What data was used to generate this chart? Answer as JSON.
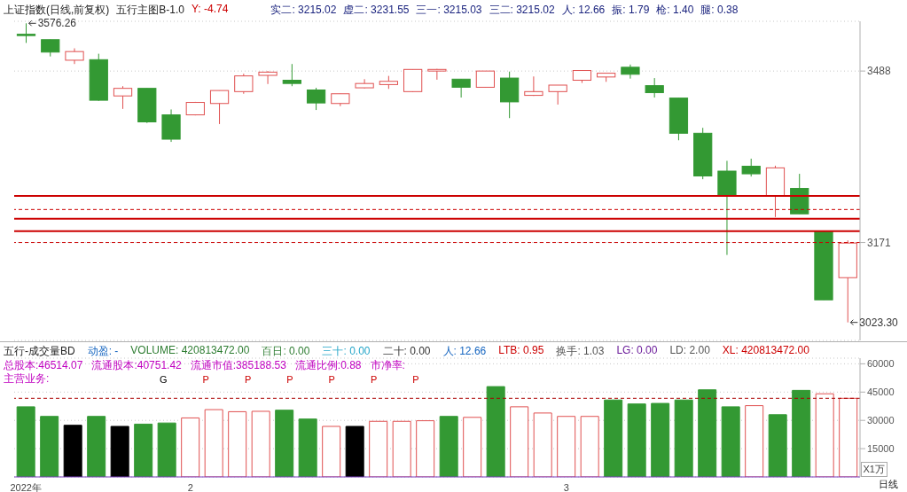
{
  "chart_data": [
    {
      "type": "candlestick",
      "title": "上证指数(日线,前复权)",
      "subtitle": "五行主图B-1.0",
      "annotations": [
        "Y: -4.74",
        "实二: 3215.02",
        "虚二: 3231.55",
        "三一: 3215.03",
        "三二: 3215.02",
        "人: 12.66",
        "振: 1.79",
        "枪: 1.40",
        "腿: 0.38",
        "3576.26",
        "3023.30"
      ],
      "categories": [
        null,
        null,
        null,
        null,
        null,
        null,
        null,
        null,
        null,
        null,
        null,
        null,
        null,
        null,
        null,
        null,
        null,
        null,
        null,
        null,
        null,
        null,
        null,
        null,
        null,
        null,
        null,
        null,
        null,
        null,
        null,
        null,
        null,
        null,
        null
      ],
      "ohlc": [
        [
          3556,
          3576.26,
          3540,
          3555
        ],
        [
          3546,
          3546,
          3515,
          3523
        ],
        [
          3508,
          3530,
          3501,
          3524
        ],
        [
          3509,
          3520,
          3433,
          3434
        ],
        [
          3442,
          3460,
          3418,
          3456
        ],
        [
          3456,
          3456,
          3392,
          3394
        ],
        [
          3407,
          3417,
          3357,
          3362
        ],
        [
          3407,
          3431,
          3406,
          3430
        ],
        [
          3428,
          3452,
          3390,
          3452
        ],
        [
          3450,
          3483,
          3446,
          3479
        ],
        [
          3480,
          3488,
          3464,
          3486
        ],
        [
          3471,
          3501,
          3460,
          3465
        ],
        [
          3453,
          3457,
          3416,
          3429
        ],
        [
          3428,
          3446,
          3423,
          3446
        ],
        [
          3457,
          3473,
          3456,
          3465
        ],
        [
          3463,
          3479,
          3455,
          3469
        ],
        [
          3450,
          3491,
          3449,
          3491
        ],
        [
          3488,
          3492,
          3472,
          3491
        ],
        [
          3473,
          3473,
          3439,
          3458
        ],
        [
          3458,
          3488,
          3458,
          3488
        ],
        [
          3475,
          3487,
          3401,
          3431
        ],
        [
          3443,
          3478,
          3442,
          3450
        ],
        [
          3450,
          3462,
          3426,
          3462
        ],
        [
          3471,
          3489,
          3466,
          3489
        ],
        [
          3477,
          3484,
          3468,
          3484
        ],
        [
          3495,
          3500,
          3474,
          3482
        ],
        [
          3461,
          3475,
          3439,
          3448
        ],
        [
          3438,
          3438,
          3360,
          3373
        ],
        [
          3373,
          3383,
          3288,
          3294
        ],
        [
          3303,
          3322,
          3148,
          3257
        ],
        [
          3312,
          3326,
          3293,
          3298
        ],
        [
          3257,
          3313,
          3218,
          3309
        ],
        [
          3271,
          3298,
          3224,
          3224
        ],
        [
          3191,
          3191,
          3065,
          3065
        ],
        [
          3106,
          3175,
          3023.3,
          3170
        ]
      ],
      "colors": [
        "#339933",
        "#339933",
        "#e05050",
        "#339933",
        "#e05050",
        "#339933",
        "#339933",
        "#e05050",
        "#e05050",
        "#e05050",
        "#e05050",
        "#339933",
        "#339933",
        "#e05050",
        "#e05050",
        "#e05050",
        "#e05050",
        "#e05050",
        "#339933",
        "#e05050",
        "#339933",
        "#e05050",
        "#e05050",
        "#e05050",
        "#e05050",
        "#339933",
        "#339933",
        "#339933",
        "#339933",
        "#339933",
        "#339933",
        "#e05050",
        "#339933",
        "#339933",
        "#e05050"
      ],
      "ylim": [
        2990,
        3580
      ],
      "yticks": [
        3488,
        3171
      ],
      "grid": "y",
      "tick_labels": "y",
      "ref_lines": [
        {
          "axis": "y",
          "value": 3257,
          "color": "#cc0000",
          "line_style": "solid"
        },
        {
          "axis": "y",
          "value": 3232,
          "color": "#cc0000",
          "line_style": "dashed"
        },
        {
          "axis": "y",
          "value": 3215,
          "color": "#cc0000",
          "line_style": "solid"
        },
        {
          "axis": "y",
          "value": 3192,
          "color": "#cc0000",
          "line_style": "solid"
        },
        {
          "axis": "y",
          "value": 3171,
          "color": "#cc0000",
          "line_style": "dashed"
        }
      ]
    },
    {
      "type": "bar",
      "title": "五行-成交量BD",
      "annotations": [
        "动盈: -",
        "VOLUME: 420813472.00",
        "百日: 0.00",
        "三十: 0.00",
        "二十: 0.00",
        "人: 12.66",
        "LTB: 0.95",
        "换手: 1.03",
        "LG: 0.00",
        "LD: 2.00",
        "XL: 420813472.00",
        "总股本:46514.07",
        "流通股本:40751.42",
        "流通市值:385188.53",
        "流通比例:0.88",
        "市净率:",
        "主营业务:",
        "G",
        "P",
        "P",
        "P",
        "P",
        "P",
        "P",
        "X1万",
        "日线"
      ],
      "categories": [
        "2022年",
        null,
        null,
        null,
        null,
        null,
        null,
        "2",
        null,
        null,
        null,
        null,
        null,
        null,
        null,
        null,
        null,
        null,
        null,
        null,
        null,
        null,
        null,
        "3",
        null,
        null,
        null,
        null,
        null,
        null,
        null,
        null,
        null,
        null,
        null,
        null
      ],
      "values": [
        37200,
        32100,
        27400,
        32100,
        26800,
        28000,
        28600,
        31300,
        35700,
        34600,
        34800,
        35400,
        30700,
        26800,
        26800,
        29500,
        29500,
        29800,
        32100,
        31600,
        47900,
        37200,
        33900,
        32100,
        32100,
        40800,
        38700,
        39000,
        40800,
        46200,
        37200,
        37800,
        33000,
        45900,
        44100,
        41700
      ],
      "colors": [
        "#339933",
        "#339933",
        "#000000",
        "#339933",
        "#000000",
        "#339933",
        "#339933",
        "#e05050",
        "#e05050",
        "#e05050",
        "#e05050",
        "#339933",
        "#339933",
        "#e05050",
        "#000000",
        "#e05050",
        "#e05050",
        "#e05050",
        "#339933",
        "#e05050",
        "#339933",
        "#e05050",
        "#e05050",
        "#e05050",
        "#e05050",
        "#339933",
        "#339933",
        "#339933",
        "#339933",
        "#339933",
        "#339933",
        "#e05050",
        "#339933",
        "#339933",
        "#e05050",
        "#e05050"
      ],
      "ylim": [
        0,
        63000
      ],
      "yticks": [
        15000,
        30000,
        45000,
        60000
      ],
      "grid": "y",
      "ref_lines": [
        {
          "axis": "y",
          "value": 41700,
          "color": "#aa0000",
          "line_style": "dashed"
        }
      ]
    }
  ]
}
